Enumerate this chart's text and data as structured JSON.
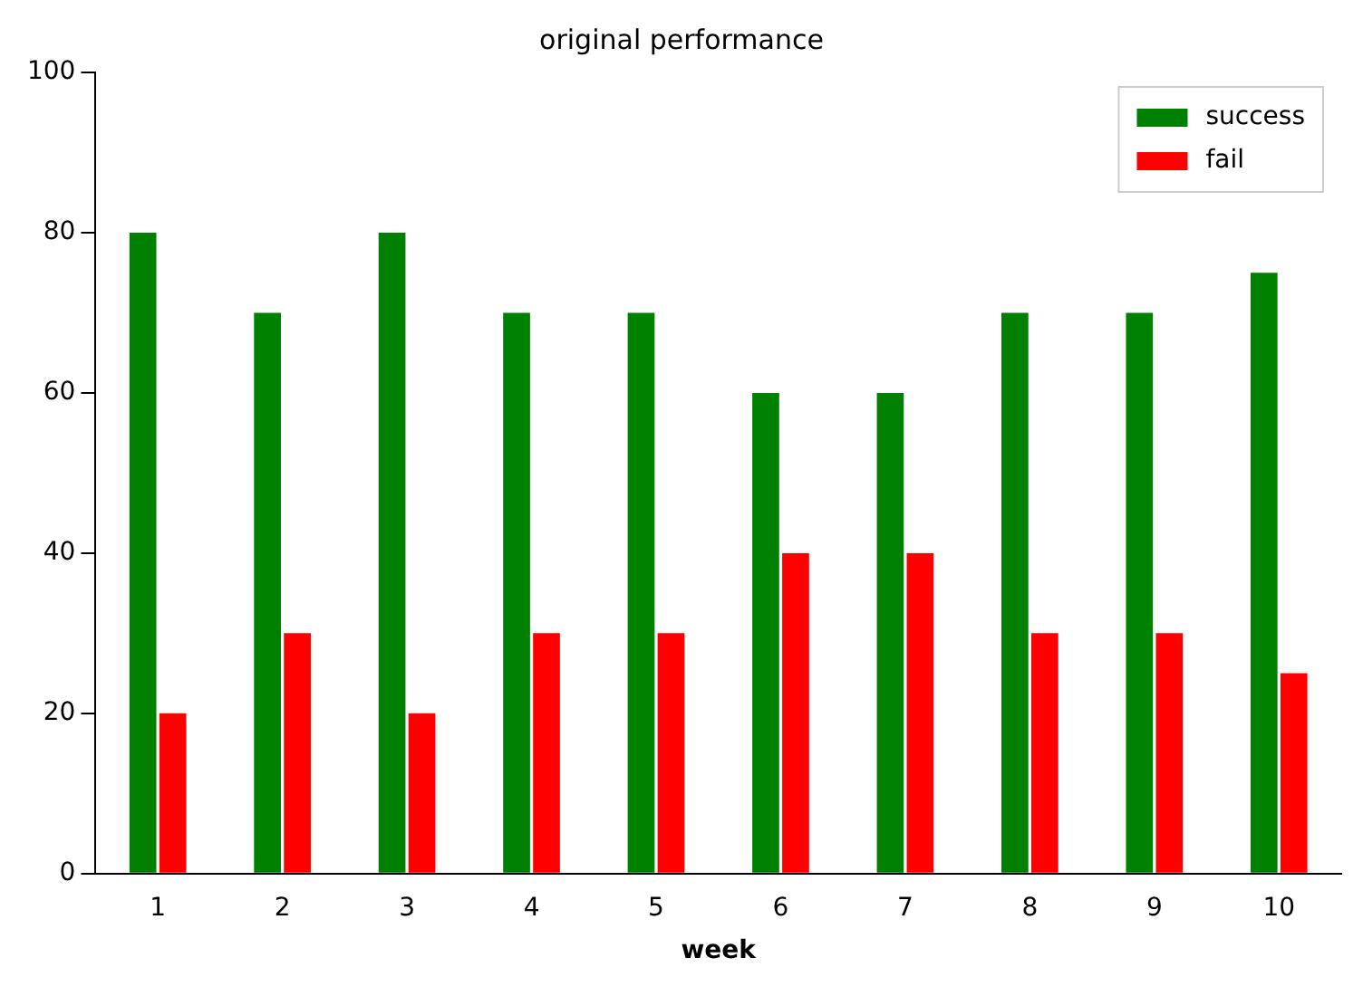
{
  "chart_data": {
    "type": "bar",
    "title": "original performance",
    "xlabel": "week",
    "categories": [
      "1",
      "2",
      "3",
      "4",
      "5",
      "6",
      "7",
      "8",
      "9",
      "10"
    ],
    "series": [
      {
        "name": "success",
        "color": "#008000",
        "values": [
          80,
          70,
          80,
          70,
          70,
          60,
          60,
          70,
          70,
          75
        ]
      },
      {
        "name": "fail",
        "color": "#ff0000",
        "values": [
          20,
          30,
          20,
          30,
          30,
          40,
          40,
          30,
          30,
          25
        ]
      }
    ],
    "ylim": [
      0,
      100
    ],
    "yticks": [
      0,
      20,
      40,
      60,
      80,
      100
    ],
    "grid": false,
    "legend": "top right"
  }
}
